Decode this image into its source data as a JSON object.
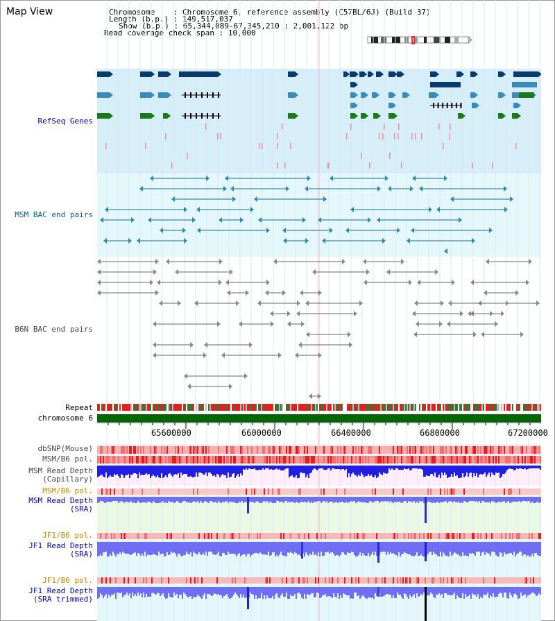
{
  "header": {
    "title": "Map View",
    "chromosome_label": "Chromosome",
    "chromosome_value": "Chromosome 6, reference assembly (C57BL/6J) (Build 37)",
    "length_label": "Length (b.p.)",
    "length_value": "149,517,037",
    "show_label": "Show (b.p.)",
    "show_value": "65,344,089-67,345,210 : 2,001,122 bp",
    "coverage_label": "Read coverage check span",
    "coverage_value": "10,000"
  },
  "tracks": {
    "refseq": "RefSeq Genes",
    "msm_bac": "MSM BAC end pairs",
    "b6n_bac": "B6N BAC end pairs",
    "repeat": "Repeat",
    "chromosome": "chromosome 6",
    "dbsnp": "dbSNP(Mouse)",
    "msm_b6_pol_1": "MSM/B6 pol.",
    "msm_depth_cap_1": "MSM Read Depth",
    "msm_depth_cap_2": "(Capillary)",
    "msm_b6_pol_2": "MSM/B6 pol.",
    "msm_depth_sra_1": "MSM Read Depth",
    "msm_depth_sra_2": "(SRA)",
    "jf1_pol_1": "JF1/B6 pol.",
    "jf1_depth_sra_1": "JF1 Read Depth",
    "jf1_depth_sra_2": "(SRA)",
    "jf1_pol_2": "JF1/B6 pol.",
    "jf1_depth_trim_1": "JF1 Read Depth",
    "jf1_depth_trim_2": "(SRA trimmed)"
  },
  "ruler": {
    "ticks": [
      "65600000",
      "66000000",
      "66400000",
      "66800000",
      "67200000"
    ]
  },
  "colors": {
    "refseq_bg": "#d6eef8",
    "bac_bg": "#e4f8fb",
    "chromosome_bar": "#006600",
    "repeat_red": "#dd2222",
    "repeat_green": "#337733",
    "depth_blue": "#1f1fe6",
    "depth_light": "#6f6ff6",
    "selection_line": "#ffb0c8"
  }
}
